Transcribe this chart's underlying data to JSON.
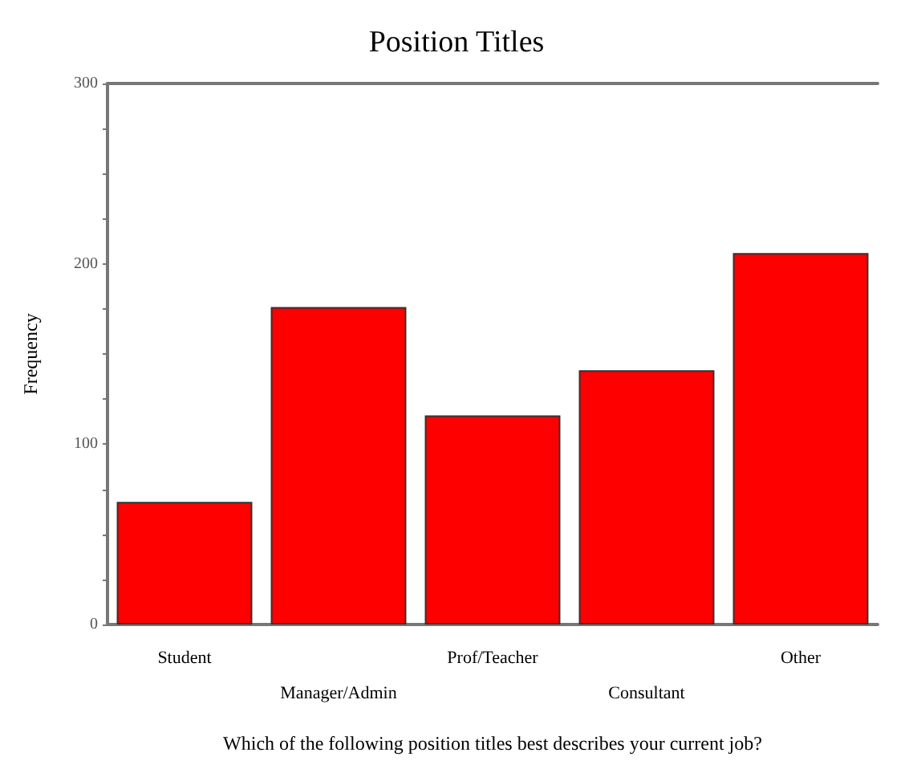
{
  "chart_data": {
    "type": "bar",
    "title": "Position Titles",
    "xlabel": "Which of the following position titles best describes your current job?",
    "ylabel": "Frequency",
    "categories": [
      "Student",
      "Manager/Admin",
      "Prof/Teacher",
      "Consultant",
      "Other"
    ],
    "values": [
      68,
      176,
      116,
      141,
      206
    ],
    "color": "#ff0000",
    "ylim": [
      0,
      300
    ],
    "yticks": [
      0,
      {
        "value": 25,
        "label": null
      },
      {
        "value": 50,
        "label": null
      },
      {
        "value": 75,
        "label": null
      },
      100,
      {
        "value": 125,
        "label": null
      },
      {
        "value": 150,
        "label": null
      },
      {
        "value": 175,
        "label": null
      },
      200,
      {
        "value": 225,
        "label": null
      },
      {
        "value": 250,
        "label": null
      },
      {
        "value": 275,
        "label": null
      },
      300
    ],
    "grid": false
  }
}
